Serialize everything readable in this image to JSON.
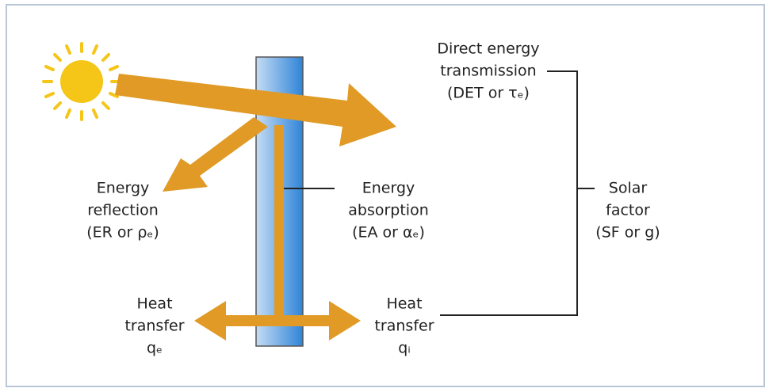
{
  "labels": [
    {
      "lines": [
        "Direct energy",
        "transmission",
        "(DET or τₑ)"
      ]
    },
    {
      "lines": [
        "Energy",
        "reflection",
        "(ER or ρₑ)"
      ]
    },
    {
      "lines": [
        "Energy",
        "absorption",
        "(EA or αₑ)"
      ]
    },
    {
      "lines": [
        "Solar",
        "factor",
        "(SF or g)"
      ]
    },
    {
      "lines": [
        "Heat",
        "transfer",
        "qₑ"
      ]
    },
    {
      "lines": [
        "Heat",
        "transfer",
        "qᵢ"
      ]
    }
  ]
}
